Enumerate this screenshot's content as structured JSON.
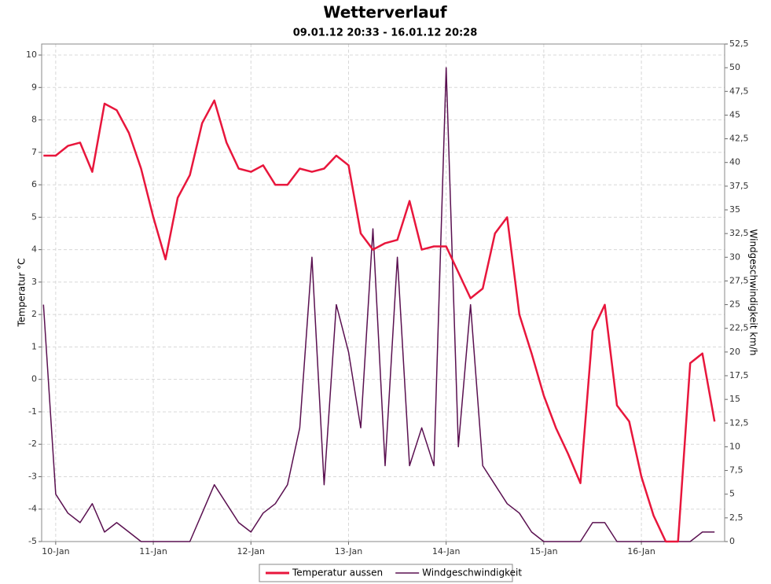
{
  "chart_data": {
    "type": "line",
    "title": "Wetterverlauf",
    "subtitle": "09.01.12 20:33 - 16.01.12 20:28",
    "y_label": "Temperatur °C",
    "y2_label": "Windgeschwindigkeit km/h",
    "x": [
      "2012-01-09T21:00",
      "2012-01-10T00:00",
      "2012-01-10T03:00",
      "2012-01-10T06:00",
      "2012-01-10T09:00",
      "2012-01-10T12:00",
      "2012-01-10T15:00",
      "2012-01-10T18:00",
      "2012-01-10T21:00",
      "2012-01-11T00:00",
      "2012-01-11T03:00",
      "2012-01-11T06:00",
      "2012-01-11T09:00",
      "2012-01-11T12:00",
      "2012-01-11T15:00",
      "2012-01-11T18:00",
      "2012-01-11T21:00",
      "2012-01-12T00:00",
      "2012-01-12T03:00",
      "2012-01-12T06:00",
      "2012-01-12T09:00",
      "2012-01-12T12:00",
      "2012-01-12T15:00",
      "2012-01-12T18:00",
      "2012-01-12T21:00",
      "2012-01-13T00:00",
      "2012-01-13T03:00",
      "2012-01-13T06:00",
      "2012-01-13T09:00",
      "2012-01-13T12:00",
      "2012-01-13T15:00",
      "2012-01-13T18:00",
      "2012-01-13T21:00",
      "2012-01-14T00:00",
      "2012-01-14T03:00",
      "2012-01-14T06:00",
      "2012-01-14T09:00",
      "2012-01-14T12:00",
      "2012-01-14T15:00",
      "2012-01-14T18:00",
      "2012-01-14T21:00",
      "2012-01-15T00:00",
      "2012-01-15T03:00",
      "2012-01-15T06:00",
      "2012-01-15T09:00",
      "2012-01-15T12:00",
      "2012-01-15T15:00",
      "2012-01-15T18:00",
      "2012-01-15T21:00",
      "2012-01-16T00:00",
      "2012-01-16T03:00",
      "2012-01-16T06:00",
      "2012-01-16T09:00",
      "2012-01-16T12:00",
      "2012-01-16T15:00",
      "2012-01-16T18:00"
    ],
    "series": [
      {
        "name": "Temperatur aussen",
        "color": "#e8163c",
        "values": [
          6.9,
          6.9,
          7.2,
          7.3,
          6.4,
          8.5,
          8.3,
          7.6,
          6.5,
          5.0,
          3.7,
          5.6,
          6.3,
          7.9,
          8.6,
          7.3,
          6.5,
          6.4,
          6.6,
          6.0,
          6.0,
          6.5,
          6.4,
          6.5,
          6.9,
          6.6,
          4.5,
          4.0,
          4.2,
          4.3,
          5.5,
          4.0,
          4.1,
          4.1,
          3.3,
          2.5,
          2.8,
          4.5,
          5.0,
          2.0,
          0.8,
          -0.5,
          -1.5,
          -2.3,
          -3.2,
          1.5,
          2.3,
          -0.8,
          -1.3,
          -3.0,
          -4.2,
          -5.0,
          -5.0,
          0.5,
          0.8,
          -1.3
        ]
      },
      {
        "name": "Windgeschwindigkeit",
        "color": "#5a1050",
        "axis": "y2",
        "values": [
          25,
          5,
          3,
          2,
          4,
          1,
          2,
          1,
          0,
          0,
          0,
          0,
          0,
          3,
          6,
          4,
          2,
          1,
          3,
          4,
          6,
          12,
          30,
          6,
          25,
          20,
          12,
          33,
          8,
          30,
          8,
          12,
          8,
          50,
          10,
          25,
          8,
          6,
          4,
          3,
          1,
          0,
          0,
          0,
          0,
          2,
          2,
          0,
          0,
          0,
          0,
          0,
          0,
          0,
          1,
          1
        ]
      }
    ],
    "xlim": [
      "2012-01-09T20:33",
      "2012-01-16T20:28"
    ],
    "xticks": [
      {
        "value": "2012-01-10T00:00",
        "label": "10-Jan"
      },
      {
        "value": "2012-01-11T00:00",
        "label": "11-Jan"
      },
      {
        "value": "2012-01-12T00:00",
        "label": "12-Jan"
      },
      {
        "value": "2012-01-13T00:00",
        "label": "13-Jan"
      },
      {
        "value": "2012-01-14T00:00",
        "label": "14-Jan"
      },
      {
        "value": "2012-01-15T00:00",
        "label": "15-Jan"
      },
      {
        "value": "2012-01-16T00:00",
        "label": "16-Jan"
      }
    ],
    "ylim": [
      -5,
      10.34
    ],
    "yticks": [
      -5,
      -4,
      -3,
      -2,
      -1,
      0,
      1,
      2,
      3,
      4,
      5,
      6,
      7,
      8,
      9,
      10
    ],
    "y2lim": [
      0,
      52.5
    ],
    "y2ticks": [
      0,
      {
        "value": 2.5,
        "label": "2,5"
      },
      5,
      {
        "value": 7.5,
        "label": "7,5"
      },
      10,
      {
        "value": 12.5,
        "label": "12,5"
      },
      15,
      {
        "value": 17.5,
        "label": "17,5"
      },
      20,
      {
        "value": 22.5,
        "label": "22,5"
      },
      25,
      {
        "value": 27.5,
        "label": "27,5"
      },
      30,
      {
        "value": 32.5,
        "label": "32,5"
      },
      35,
      {
        "value": 37.5,
        "label": "37,5"
      },
      40,
      {
        "value": 42.5,
        "label": "42,5"
      },
      45,
      {
        "value": 47.5,
        "label": "47,5"
      },
      50,
      {
        "value": 52.5,
        "label": "52,5"
      }
    ],
    "grid": true,
    "legend": "bottom"
  }
}
